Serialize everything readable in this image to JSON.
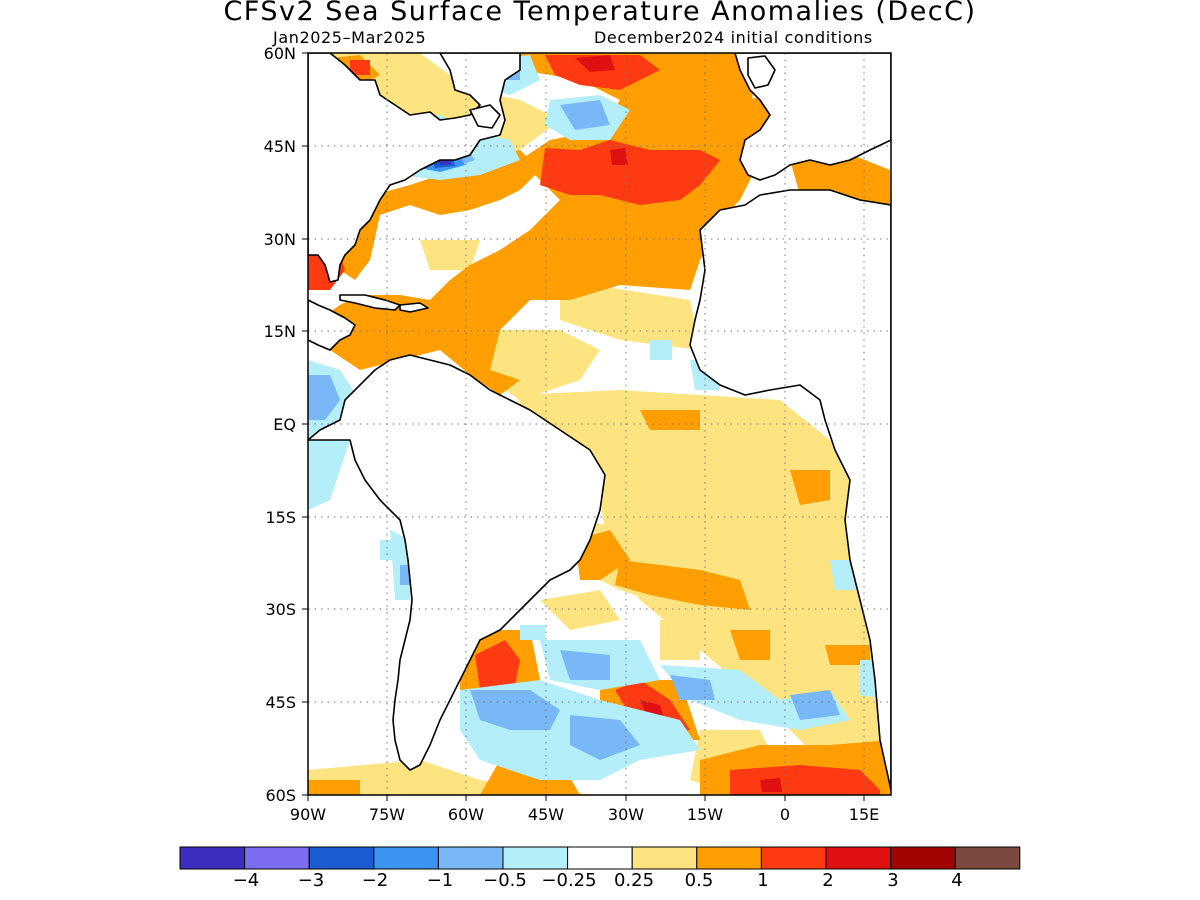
{
  "header": {
    "title": "CFSv2 Sea Surface Temperature Anomalies (DecC)",
    "season": "Jan2025–Mar2025",
    "initial_conditions": "December2024 initial conditions"
  },
  "map": {
    "lat_labels": [
      "60N",
      "45N",
      "30N",
      "15N",
      "EQ",
      "15S",
      "30S",
      "45S",
      "60S"
    ],
    "lon_labels": [
      "90W",
      "75W",
      "60W",
      "45W",
      "30W",
      "15W",
      "0",
      "15E"
    ],
    "lat_range": [
      -60,
      60
    ],
    "lon_range": [
      -90,
      20
    ],
    "grid": "dotted"
  },
  "colorbar": {
    "colors": [
      "#3c2ec0",
      "#7c6cf0",
      "#1c5cd2",
      "#3c94f2",
      "#78b8f6",
      "#b4eef8",
      "#ffffff",
      "#fde480",
      "#ff9e00",
      "#fe3a12",
      "#e01010",
      "#a20404",
      "#7a4a3e"
    ],
    "labels": [
      "−4",
      "−3",
      "−2",
      "−1",
      "−0.5",
      "−0.25",
      "0.25",
      "0.5",
      "1",
      "2",
      "3",
      "4"
    ]
  }
}
